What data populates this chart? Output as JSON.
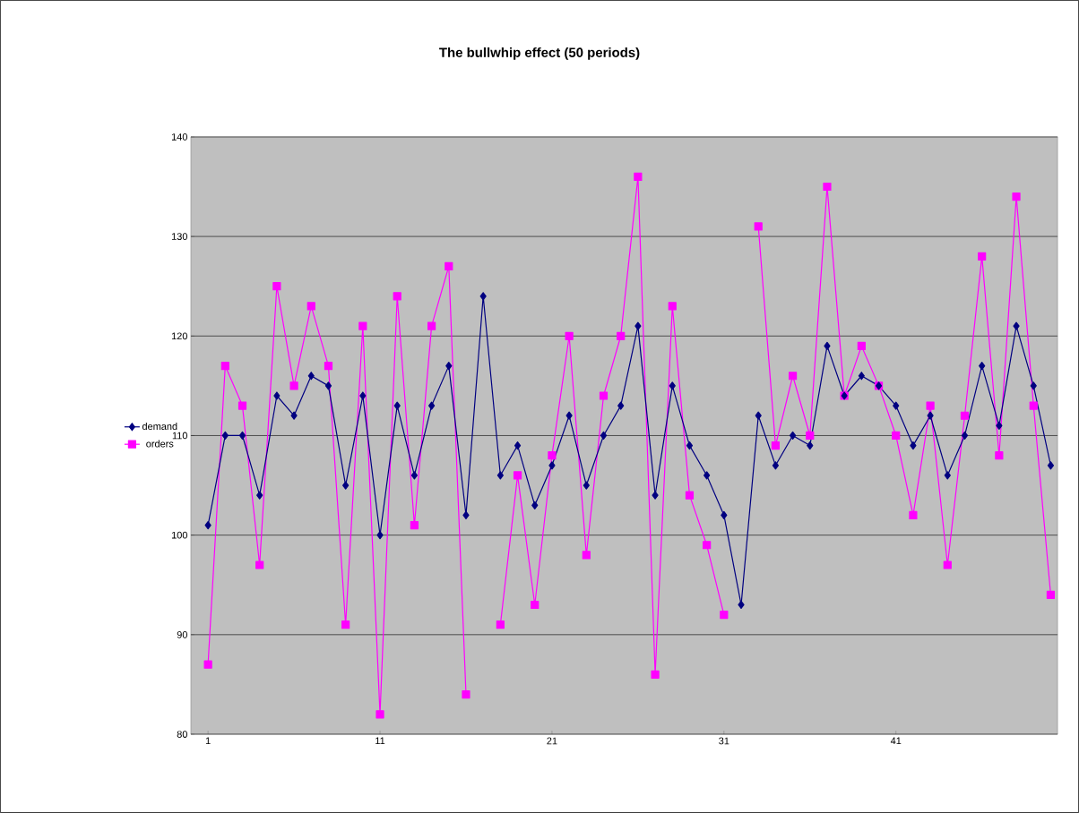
{
  "chart_data": {
    "type": "line",
    "title": "The bullwhip effect (50 periods)",
    "categories": [
      "1",
      null,
      null,
      null,
      null,
      null,
      null,
      null,
      null,
      null,
      "11",
      null,
      null,
      null,
      null,
      null,
      null,
      null,
      null,
      null,
      "21",
      null,
      null,
      null,
      null,
      null,
      null,
      null,
      null,
      null,
      "31",
      null,
      null,
      null,
      null,
      null,
      null,
      null,
      null,
      null,
      "41",
      null,
      null,
      null,
      null,
      null,
      null,
      null,
      null,
      null
    ],
    "series": [
      {
        "name": "demand",
        "color": "#000080",
        "marker": "diamond",
        "values": [
          101,
          110,
          110,
          104,
          114,
          112,
          116,
          115,
          105,
          114,
          100,
          113,
          106,
          113,
          117,
          102,
          124,
          106,
          109,
          103,
          107,
          112,
          105,
          110,
          113,
          121,
          104,
          115,
          109,
          106,
          102,
          93,
          112,
          107,
          110,
          109,
          119,
          114,
          116,
          115,
          113,
          109,
          112,
          106,
          110,
          117,
          111,
          121,
          115,
          107
        ]
      },
      {
        "name": "orders",
        "color": "#ff00ff",
        "marker": "square",
        "values": [
          87,
          117,
          113,
          97,
          125,
          115,
          123,
          117,
          91,
          121,
          82,
          124,
          101,
          121,
          127,
          84,
          null,
          91,
          106,
          93,
          108,
          120,
          98,
          114,
          120,
          136,
          86,
          123,
          104,
          99,
          92,
          null,
          131,
          109,
          116,
          110,
          135,
          114,
          119,
          115,
          110,
          102,
          113,
          97,
          112,
          128,
          108,
          134,
          113,
          94
        ]
      }
    ],
    "ylim": [
      80,
      140
    ],
    "yticks": [
      80,
      90,
      100,
      110,
      120,
      130,
      140
    ],
    "grid": "y",
    "legend": "left"
  }
}
